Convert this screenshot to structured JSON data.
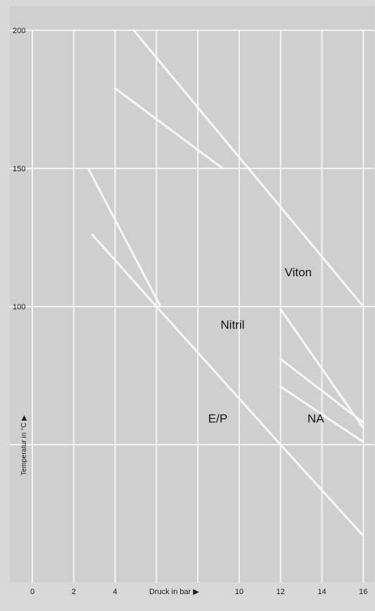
{
  "chart_data": {
    "type": "line",
    "xlabel": "Druck in bar ▶",
    "ylabel": "Temperatur in °C ▶",
    "xlim": [
      -0.5,
      16.0
    ],
    "ylim": [
      0,
      200
    ],
    "x_ticks": [
      {
        "value": 0,
        "label": "0"
      },
      {
        "value": 2,
        "label": "2"
      },
      {
        "value": 4,
        "label": "4"
      },
      {
        "value": 10,
        "label": "10"
      },
      {
        "value": 12,
        "label": "12"
      },
      {
        "value": 14,
        "label": "14"
      },
      {
        "value": 16,
        "label": "16"
      }
    ],
    "x_gridlines": [
      0,
      2,
      4,
      6,
      8,
      10,
      12,
      14,
      16
    ],
    "y_ticks": [
      {
        "value": 100,
        "label": "100"
      },
      {
        "value": 150,
        "label": "150"
      },
      {
        "value": 200,
        "label": "200"
      }
    ],
    "y_gridlines": [
      50,
      100,
      150,
      200
    ],
    "grid": true,
    "series": [
      {
        "name": "Viton",
        "segments": [
          [
            {
              "x": 4.9,
              "y": 200
            },
            {
              "x": 16,
              "y": 100
            }
          ],
          [
            {
              "x": 4.0,
              "y": 179
            },
            {
              "x": 9.2,
              "y": 150
            }
          ]
        ]
      },
      {
        "name": "Nitril",
        "segments": [
          [
            {
              "x": 2.7,
              "y": 150
            },
            {
              "x": 6.2,
              "y": 100
            }
          ],
          [
            {
              "x": 12.0,
              "y": 99
            },
            {
              "x": 16,
              "y": 56
            }
          ]
        ]
      },
      {
        "name": "E/P",
        "segments": [
          [
            {
              "x": 2.9,
              "y": 126
            },
            {
              "x": 6.0,
              "y": 100
            }
          ],
          [
            {
              "x": 6.0,
              "y": 100
            },
            {
              "x": 12,
              "y": 50
            }
          ],
          [
            {
              "x": 12,
              "y": 50
            },
            {
              "x": 16,
              "y": 17
            }
          ]
        ]
      },
      {
        "name": "NA",
        "segments": [
          [
            {
              "x": 12.0,
              "y": 81
            },
            {
              "x": 16,
              "y": 58
            }
          ],
          [
            {
              "x": 12.0,
              "y": 71
            },
            {
              "x": 16,
              "y": 51
            }
          ]
        ]
      }
    ],
    "labels": [
      {
        "text": "Viton",
        "x": 12.2,
        "y": 111
      },
      {
        "text": "Nitril",
        "x": 9.1,
        "y": 92
      },
      {
        "text": "E/P",
        "x": 8.5,
        "y": 58
      },
      {
        "text": "NA",
        "x": 13.3,
        "y": 58
      }
    ]
  },
  "colors": {
    "background": "#d8d8d8",
    "plot_background": "#cfcfcf",
    "grid": "#f4f4f4",
    "line": "#f7f7f7",
    "text": "#1a1a1a"
  }
}
